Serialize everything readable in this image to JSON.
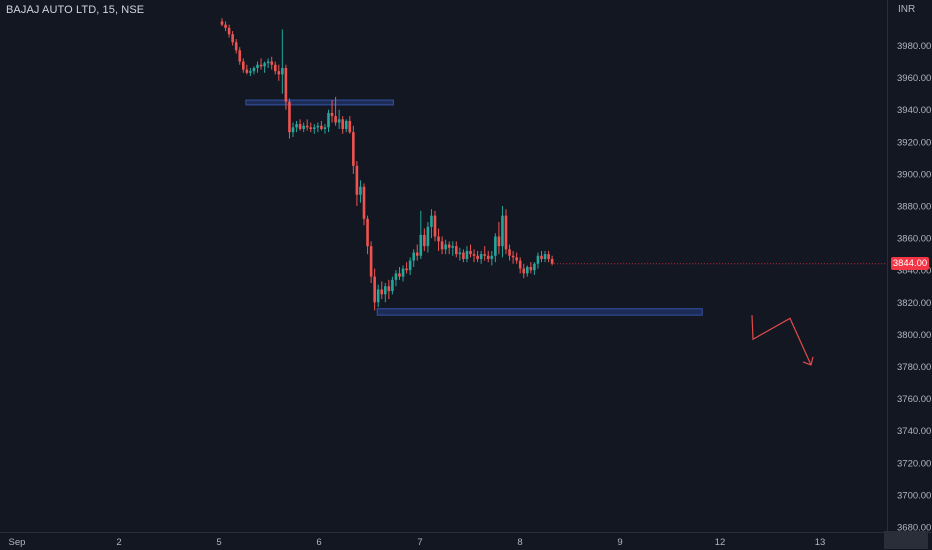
{
  "header": {
    "symbol": "BAJAJ AUTO LTD, 15, NSE",
    "currency": "INR"
  },
  "last_price": {
    "label": "3844.00",
    "value": 3844
  },
  "colors": {
    "background": "#131722",
    "up": "#26a69a",
    "down": "#ef5350",
    "axis_text": "#b2b5be",
    "zone_fill": "#1e2f5c",
    "zone_stroke": "#3452a3",
    "projection": "#e04a4a",
    "badge": "#f23645"
  },
  "chart_data": {
    "type": "candlestick",
    "title": "BAJAJ AUTO LTD, 15, NSE",
    "y_axis": {
      "ticks": [
        3980,
        3960,
        3940,
        3920,
        3900,
        3880,
        3860,
        3840,
        3820,
        3800,
        3780,
        3760,
        3740,
        3720,
        3700,
        3680
      ],
      "tick_labels": [
        "3980.00",
        "3960.00",
        "3940.00",
        "3920.00",
        "3900.00",
        "3880.00",
        "3860.00",
        "3840.00",
        "3820.00",
        "3800.00",
        "3780.00",
        "3760.00",
        "3740.00",
        "3720.00",
        "3700.00",
        "3680.00"
      ],
      "ylim": [
        3677,
        3993
      ]
    },
    "x_axis": {
      "ticks": [
        "Sep",
        "2",
        "5",
        "6",
        "7",
        "8",
        "9",
        "12",
        "13"
      ]
    },
    "grid": false,
    "candles": [
      [
        3995,
        3997,
        3992,
        3993
      ],
      [
        3993,
        3995,
        3989,
        3991
      ],
      [
        3991,
        3993,
        3985,
        3987
      ],
      [
        3987,
        3989,
        3980,
        3982
      ],
      [
        3982,
        3984,
        3975,
        3977
      ],
      [
        3977,
        3979,
        3968,
        3970
      ],
      [
        3970,
        3972,
        3963,
        3965
      ],
      [
        3965,
        3968,
        3962,
        3963
      ],
      [
        3963,
        3966,
        3961,
        3964
      ],
      [
        3964,
        3967,
        3962,
        3966
      ],
      [
        3966,
        3970,
        3963,
        3968
      ],
      [
        3968,
        3972,
        3965,
        3967
      ],
      [
        3967,
        3970,
        3963,
        3969
      ],
      [
        3969,
        3972,
        3966,
        3970
      ],
      [
        3970,
        3973,
        3965,
        3968
      ],
      [
        3968,
        3970,
        3962,
        3964
      ],
      [
        3964,
        3968,
        3958,
        3962
      ],
      [
        3962,
        3990,
        3950,
        3966
      ],
      [
        3966,
        3968,
        3940,
        3945
      ],
      [
        3945,
        3947,
        3922,
        3926
      ],
      [
        3926,
        3932,
        3923,
        3929
      ],
      [
        3929,
        3933,
        3926,
        3931
      ],
      [
        3931,
        3934,
        3927,
        3928
      ],
      [
        3928,
        3932,
        3926,
        3930
      ],
      [
        3930,
        3934,
        3927,
        3929
      ],
      [
        3929,
        3932,
        3926,
        3928
      ],
      [
        3928,
        3931,
        3925,
        3929
      ],
      [
        3929,
        3932,
        3926,
        3930
      ],
      [
        3930,
        3933,
        3927,
        3928
      ],
      [
        3928,
        3931,
        3925,
        3929
      ],
      [
        3929,
        3940,
        3926,
        3938
      ],
      [
        3938,
        3946,
        3932,
        3936
      ],
      [
        3936,
        3948,
        3930,
        3932
      ],
      [
        3932,
        3940,
        3928,
        3934
      ],
      [
        3934,
        3936,
        3925,
        3928
      ],
      [
        3928,
        3934,
        3926,
        3933
      ],
      [
        3933,
        3936,
        3925,
        3926
      ],
      [
        3926,
        3930,
        3900,
        3905
      ],
      [
        3905,
        3908,
        3880,
        3887
      ],
      [
        3887,
        3896,
        3882,
        3892
      ],
      [
        3892,
        3894,
        3868,
        3872
      ],
      [
        3872,
        3874,
        3850,
        3855
      ],
      [
        3855,
        3858,
        3832,
        3836
      ],
      [
        3836,
        3841,
        3815,
        3820
      ],
      [
        3820,
        3831,
        3817,
        3828
      ],
      [
        3828,
        3833,
        3822,
        3825
      ],
      [
        3825,
        3832,
        3820,
        3830
      ],
      [
        3830,
        3834,
        3822,
        3827
      ],
      [
        3827,
        3836,
        3825,
        3834
      ],
      [
        3834,
        3840,
        3830,
        3838
      ],
      [
        3838,
        3842,
        3834,
        3836
      ],
      [
        3836,
        3843,
        3833,
        3841
      ],
      [
        3841,
        3845,
        3838,
        3840
      ],
      [
        3840,
        3848,
        3837,
        3846
      ],
      [
        3846,
        3853,
        3842,
        3851
      ],
      [
        3851,
        3856,
        3846,
        3849
      ],
      [
        3849,
        3877,
        3847,
        3862
      ],
      [
        3862,
        3866,
        3852,
        3855
      ],
      [
        3855,
        3870,
        3851,
        3867
      ],
      [
        3867,
        3878,
        3860,
        3874
      ],
      [
        3874,
        3877,
        3858,
        3861
      ],
      [
        3861,
        3866,
        3852,
        3858
      ],
      [
        3858,
        3861,
        3850,
        3853
      ],
      [
        3853,
        3859,
        3850,
        3856
      ],
      [
        3856,
        3858,
        3850,
        3854
      ],
      [
        3854,
        3858,
        3849,
        3855
      ],
      [
        3855,
        3858,
        3848,
        3850
      ],
      [
        3850,
        3854,
        3846,
        3851
      ],
      [
        3851,
        3853,
        3845,
        3847
      ],
      [
        3847,
        3855,
        3845,
        3852
      ],
      [
        3852,
        3856,
        3848,
        3850
      ],
      [
        3850,
        3853,
        3845,
        3849
      ],
      [
        3849,
        3852,
        3845,
        3847
      ],
      [
        3847,
        3852,
        3844,
        3850
      ],
      [
        3850,
        3855,
        3846,
        3849
      ],
      [
        3849,
        3852,
        3845,
        3847
      ],
      [
        3847,
        3852,
        3843,
        3849
      ],
      [
        3849,
        3863,
        3845,
        3861
      ],
      [
        3861,
        3870,
        3850,
        3855
      ],
      [
        3855,
        3880,
        3848,
        3874
      ],
      [
        3874,
        3878,
        3850,
        3853
      ],
      [
        3853,
        3856,
        3846,
        3849
      ],
      [
        3849,
        3852,
        3844,
        3848
      ],
      [
        3848,
        3851,
        3844,
        3846
      ],
      [
        3846,
        3848,
        3838,
        3841
      ],
      [
        3841,
        3844,
        3835,
        3838
      ],
      [
        3838,
        3843,
        3836,
        3842
      ],
      [
        3842,
        3845,
        3838,
        3840
      ],
      [
        3840,
        3845,
        3837,
        3844
      ],
      [
        3844,
        3851,
        3841,
        3849
      ],
      [
        3849,
        3852,
        3845,
        3847
      ],
      [
        3847,
        3852,
        3845,
        3850
      ],
      [
        3850,
        3852,
        3845,
        3847
      ],
      [
        3847,
        3849,
        3843,
        3844
      ]
    ],
    "zones": [
      {
        "name": "zone-upper",
        "from_candle": 7,
        "to_candle": 48,
        "price_top": 3946,
        "price_bottom": 3943
      },
      {
        "name": "zone-lower",
        "from_candle": 44,
        "to_candle": 135,
        "price_top": 3816,
        "price_bottom": 3812
      }
    ],
    "projection": [
      [
        3812,
        3812
      ],
      [
        3797,
        3799
      ],
      [
        3810,
        3810
      ],
      [
        3781,
        3782
      ]
    ]
  }
}
